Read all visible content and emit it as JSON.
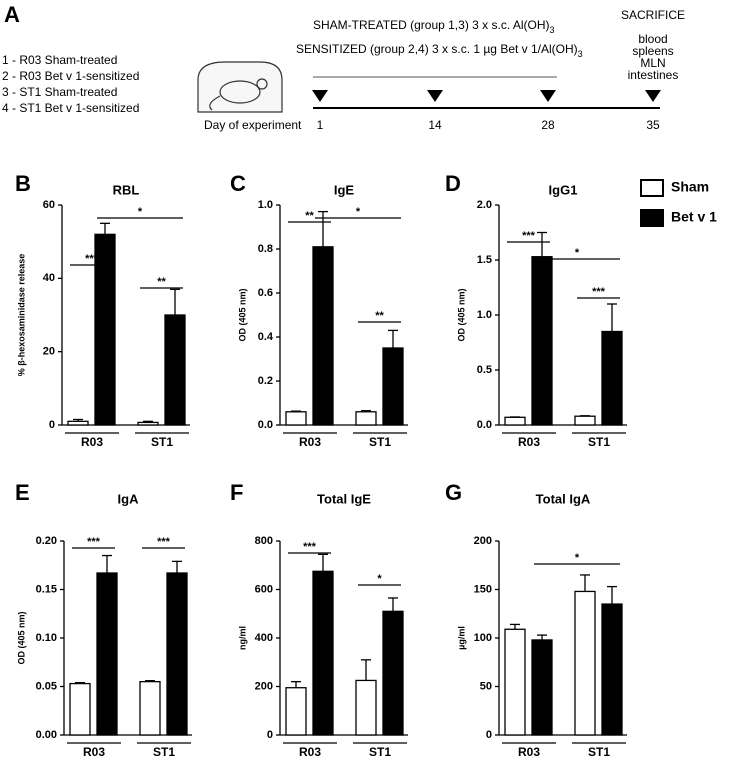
{
  "timeline": {
    "label": "A",
    "groups": [
      "1 - R03 Sham-treated",
      "2 - R03 Bet v 1-sensitized",
      "3 - ST1 Sham-treated",
      "4 - ST1 Bet v 1-sensitized"
    ],
    "sham": {
      "text": "SHAM-TREATED (group 1,3)  3 x s.c. Al(OH)",
      "sub": "3"
    },
    "sensitized": {
      "text": "SENSITIZED (group 2,4)  3 x s.c. 1 µg Bet v 1/Al(OH)",
      "sub": "3"
    },
    "sacrifice": "SACRIFICE",
    "samples": [
      "blood",
      "spleens",
      "MLN",
      "intestines"
    ],
    "axis_label": "Day of experiment",
    "days": [
      1,
      14,
      28,
      35
    ]
  },
  "chart_data": [
    {
      "type": "bar",
      "label": "B",
      "title": "RBL",
      "y_label": "% β-hexosaminidase release",
      "categories": [
        "R03",
        "ST1"
      ],
      "series": [
        {
          "name": "Sham",
          "color": "#ffffff",
          "values": [
            1,
            0.7
          ],
          "errors": [
            0.5,
            0.3
          ]
        },
        {
          "name": "Bet v 1",
          "color": "#000000",
          "values": [
            52,
            30
          ],
          "errors": [
            3,
            7
          ]
        }
      ],
      "ylim": [
        0,
        60
      ],
      "yticks": [
        0,
        20,
        40,
        60
      ],
      "annotations": [
        "***",
        "*",
        "**"
      ]
    },
    {
      "type": "bar",
      "label": "C",
      "title": "IgE",
      "y_label": "OD (405 nm)",
      "categories": [
        "R03",
        "ST1"
      ],
      "series": [
        {
          "name": "Sham",
          "color": "#ffffff",
          "values": [
            0.06,
            0.06
          ],
          "errors": [
            0.003,
            0.005
          ]
        },
        {
          "name": "Bet v 1",
          "color": "#000000",
          "values": [
            0.81,
            0.35
          ],
          "errors": [
            0.16,
            0.08
          ]
        }
      ],
      "ylim": [
        0,
        1.0
      ],
      "yticks": [
        {
          "value": 0,
          "label": "0.0"
        },
        0.2,
        0.4,
        0.6,
        0.8,
        {
          "value": 1,
          "label": "1.0"
        }
      ],
      "annotations": [
        "**",
        "*",
        "**"
      ]
    },
    {
      "type": "bar",
      "label": "D",
      "title": "IgG1",
      "y_label": "OD (405 nm)",
      "categories": [
        "R03",
        "ST1"
      ],
      "legend": "right",
      "series": [
        {
          "name": "Sham",
          "color": "#ffffff",
          "values": [
            0.07,
            0.08
          ],
          "errors": [
            0.003,
            0.004
          ]
        },
        {
          "name": "Bet v 1",
          "color": "#000000",
          "values": [
            1.53,
            0.85
          ],
          "errors": [
            0.22,
            0.25
          ]
        }
      ],
      "ylim": [
        0,
        2.0
      ],
      "yticks": [
        {
          "value": 0,
          "label": "0.0"
        },
        0.5,
        {
          "value": 1,
          "label": "1.0"
        },
        1.5,
        {
          "value": 2,
          "label": "2.0"
        }
      ],
      "annotations": [
        "***",
        "*",
        "***"
      ]
    },
    {
      "type": "bar",
      "label": "E",
      "title": "IgA",
      "y_label": "OD (405 nm)",
      "categories": [
        "R03",
        "ST1"
      ],
      "series": [
        {
          "name": "Sham",
          "color": "#ffffff",
          "values": [
            0.053,
            0.055
          ],
          "errors": [
            0.001,
            0.001
          ]
        },
        {
          "name": "Bet v 1",
          "color": "#000000",
          "values": [
            0.167,
            0.167
          ],
          "errors": [
            0.018,
            0.012
          ]
        }
      ],
      "ylim": [
        0,
        0.2
      ],
      "yticks": [
        {
          "value": 0,
          "label": "0.00"
        },
        0.05,
        {
          "value": 0.1,
          "label": "0.10"
        },
        0.15,
        {
          "value": 0.2,
          "label": "0.20"
        }
      ],
      "annotations": [
        "***",
        "***"
      ]
    },
    {
      "type": "bar",
      "label": "F",
      "title": "Total IgE",
      "y_label": "ng/ml",
      "categories": [
        "R03",
        "ST1"
      ],
      "series": [
        {
          "name": "Sham",
          "color": "#ffffff",
          "values": [
            195,
            225
          ],
          "errors": [
            25,
            85
          ]
        },
        {
          "name": "Bet v 1",
          "color": "#000000",
          "values": [
            675,
            510
          ],
          "errors": [
            70,
            55
          ]
        }
      ],
      "ylim": [
        0,
        800
      ],
      "yticks": [
        0,
        200,
        400,
        600,
        800
      ],
      "annotations": [
        "***",
        "*"
      ]
    },
    {
      "type": "bar",
      "label": "G",
      "title": "Total IgA",
      "y_label": "µg/ml",
      "categories": [
        "R03",
        "ST1"
      ],
      "series": [
        {
          "name": "Sham",
          "color": "#ffffff",
          "values": [
            109,
            148
          ],
          "errors": [
            5,
            17
          ]
        },
        {
          "name": "Bet v 1",
          "color": "#000000",
          "values": [
            98,
            135
          ],
          "errors": [
            5,
            18
          ]
        }
      ],
      "ylim": [
        0,
        200
      ],
      "yticks": [
        0,
        50,
        100,
        150,
        200
      ],
      "annotations": [
        "*"
      ]
    }
  ]
}
